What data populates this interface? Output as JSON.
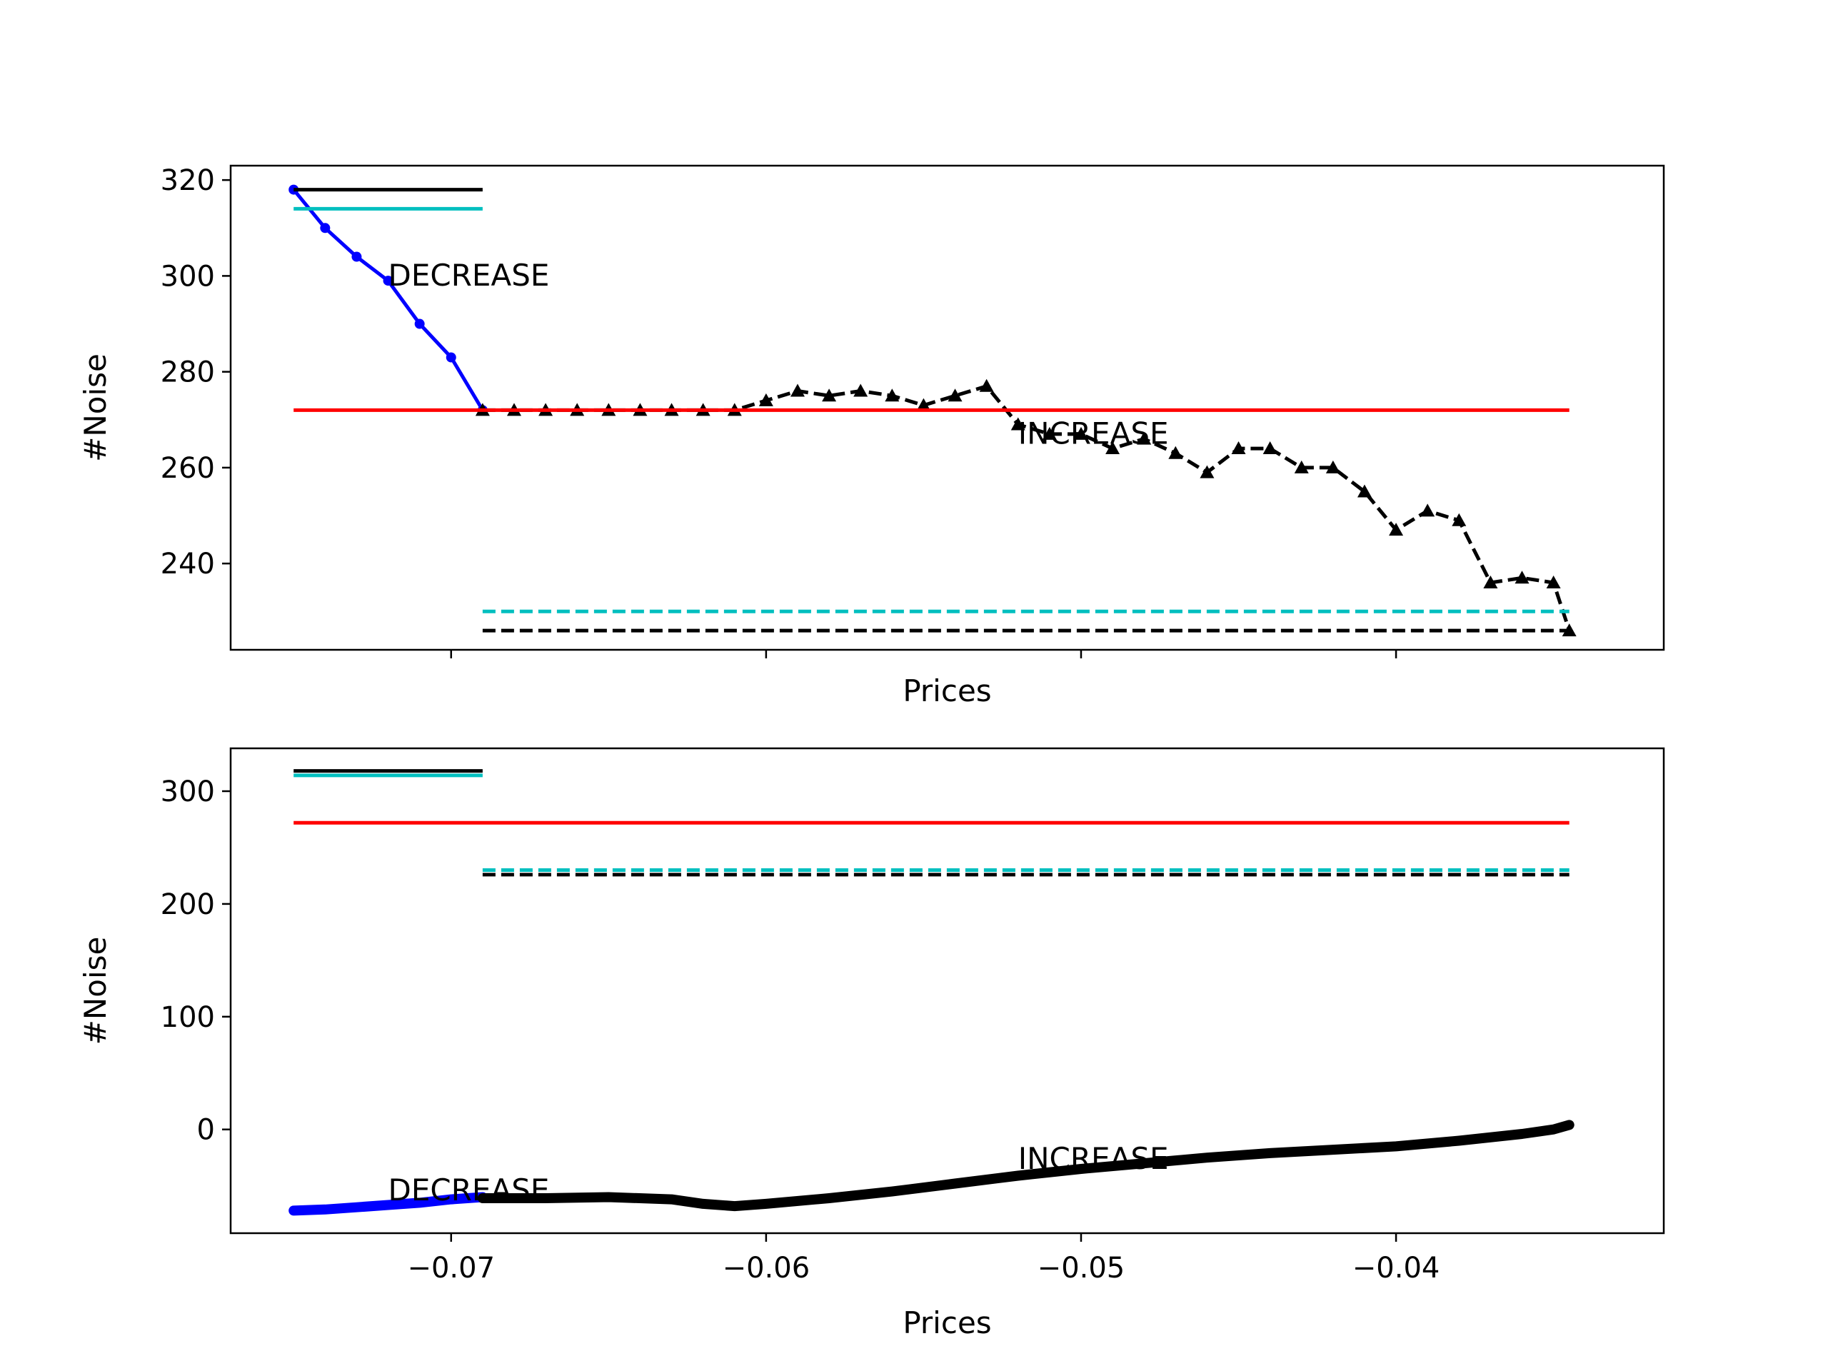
{
  "chart_data": [
    {
      "type": "line",
      "xlabel": "Prices",
      "ylabel": "#Noise",
      "xlim": [
        -0.077,
        -0.0315
      ],
      "ylim": [
        222,
        323
      ],
      "xticks": [
        -0.07,
        -0.06,
        -0.05,
        -0.04
      ],
      "show_xtick_labels": false,
      "yticks": [
        240,
        260,
        280,
        300,
        320
      ],
      "ytick_labels": [
        "240",
        "260",
        "280",
        "300",
        "320"
      ],
      "grid": false,
      "annotations": [
        {
          "text": "DECREASE",
          "x": -0.072,
          "y": 298
        },
        {
          "text": "INCREASE",
          "x": -0.052,
          "y": 265
        }
      ],
      "series": [
        {
          "color": "#0000ff",
          "style": "solid",
          "marker": "dot",
          "x": [
            -0.075,
            -0.074,
            -0.073,
            -0.072,
            -0.071,
            -0.07,
            -0.069
          ],
          "y": [
            318,
            310,
            304,
            299,
            290,
            283,
            272
          ]
        },
        {
          "color": "#000000",
          "style": "dashed",
          "marker": "triangle",
          "x": [
            -0.069,
            -0.068,
            -0.067,
            -0.066,
            -0.065,
            -0.064,
            -0.063,
            -0.062,
            -0.061,
            -0.06,
            -0.059,
            -0.058,
            -0.057,
            -0.056,
            -0.055,
            -0.054,
            -0.053,
            -0.052,
            -0.051,
            -0.05,
            -0.049,
            -0.048,
            -0.047,
            -0.046,
            -0.045,
            -0.044,
            -0.043,
            -0.042,
            -0.041,
            -0.04,
            -0.039,
            -0.038,
            -0.037,
            -0.036,
            -0.035,
            -0.0345
          ],
          "y": [
            272,
            272,
            272,
            272,
            272,
            272,
            272,
            272,
            272,
            274,
            276,
            275,
            276,
            275,
            273,
            275,
            277,
            269,
            267,
            267,
            264,
            266,
            263,
            259,
            264,
            264,
            260,
            260,
            255,
            247,
            251,
            249,
            236,
            237,
            236,
            226
          ]
        },
        {
          "color": "#ff0000",
          "style": "solid",
          "x": [
            -0.075,
            -0.0345
          ],
          "y": [
            272,
            272
          ]
        },
        {
          "color": "#000000",
          "style": "solid",
          "x": [
            -0.075,
            -0.069
          ],
          "y": [
            318,
            318
          ]
        },
        {
          "color": "#00bfbf",
          "style": "solid",
          "x": [
            -0.075,
            -0.069
          ],
          "y": [
            314,
            314
          ]
        },
        {
          "color": "#00bfbf",
          "style": "dashed",
          "x": [
            -0.069,
            -0.0345
          ],
          "y": [
            230,
            230
          ]
        },
        {
          "color": "#000000",
          "style": "dashed",
          "x": [
            -0.069,
            -0.0345
          ],
          "y": [
            226,
            226
          ]
        }
      ]
    },
    {
      "type": "line",
      "xlabel": "Prices",
      "ylabel": "#Noise",
      "xlim": [
        -0.077,
        -0.0315
      ],
      "ylim": [
        -92,
        338
      ],
      "xticks": [
        -0.07,
        -0.06,
        -0.05,
        -0.04
      ],
      "xtick_labels": [
        "−0.07",
        "−0.06",
        "−0.05",
        "−0.04"
      ],
      "show_xtick_labels": true,
      "yticks": [
        0,
        100,
        200,
        300
      ],
      "ytick_labels": [
        "0",
        "100",
        "200",
        "300"
      ],
      "grid": false,
      "annotations": [
        {
          "text": "DECREASE",
          "x": -0.072,
          "y": -63
        },
        {
          "text": "INCREASE",
          "x": -0.052,
          "y": -35
        }
      ],
      "series": [
        {
          "color": "#0000ff",
          "style": "solid",
          "marker": "dot",
          "thick": true,
          "x": [
            -0.075,
            -0.074,
            -0.073,
            -0.072,
            -0.071,
            -0.07,
            -0.069
          ],
          "y": [
            -72,
            -71,
            -69,
            -67,
            -65,
            -62,
            -60
          ]
        },
        {
          "color": "#000000",
          "style": "solid",
          "marker": "triangle",
          "thick": true,
          "x": [
            -0.069,
            -0.067,
            -0.065,
            -0.063,
            -0.062,
            -0.061,
            -0.06,
            -0.058,
            -0.056,
            -0.054,
            -0.052,
            -0.05,
            -0.048,
            -0.046,
            -0.044,
            -0.042,
            -0.04,
            -0.038,
            -0.036,
            -0.035,
            -0.0345
          ],
          "y": [
            -61,
            -61,
            -60,
            -62,
            -66,
            -68,
            -66,
            -61,
            -55,
            -48,
            -41,
            -35,
            -30,
            -25,
            -21,
            -18,
            -15,
            -10,
            -4,
            0,
            4
          ]
        },
        {
          "color": "#ff0000",
          "style": "solid",
          "x": [
            -0.075,
            -0.0345
          ],
          "y": [
            272,
            272
          ]
        },
        {
          "color": "#000000",
          "style": "solid",
          "x": [
            -0.075,
            -0.069
          ],
          "y": [
            318,
            318
          ]
        },
        {
          "color": "#00bfbf",
          "style": "solid",
          "x": [
            -0.075,
            -0.069
          ],
          "y": [
            314,
            314
          ]
        },
        {
          "color": "#00bfbf",
          "style": "dashed",
          "x": [
            -0.069,
            -0.0345
          ],
          "y": [
            230,
            230
          ]
        },
        {
          "color": "#000000",
          "style": "dashed",
          "x": [
            -0.069,
            -0.0345
          ],
          "y": [
            226,
            226
          ]
        }
      ]
    }
  ]
}
